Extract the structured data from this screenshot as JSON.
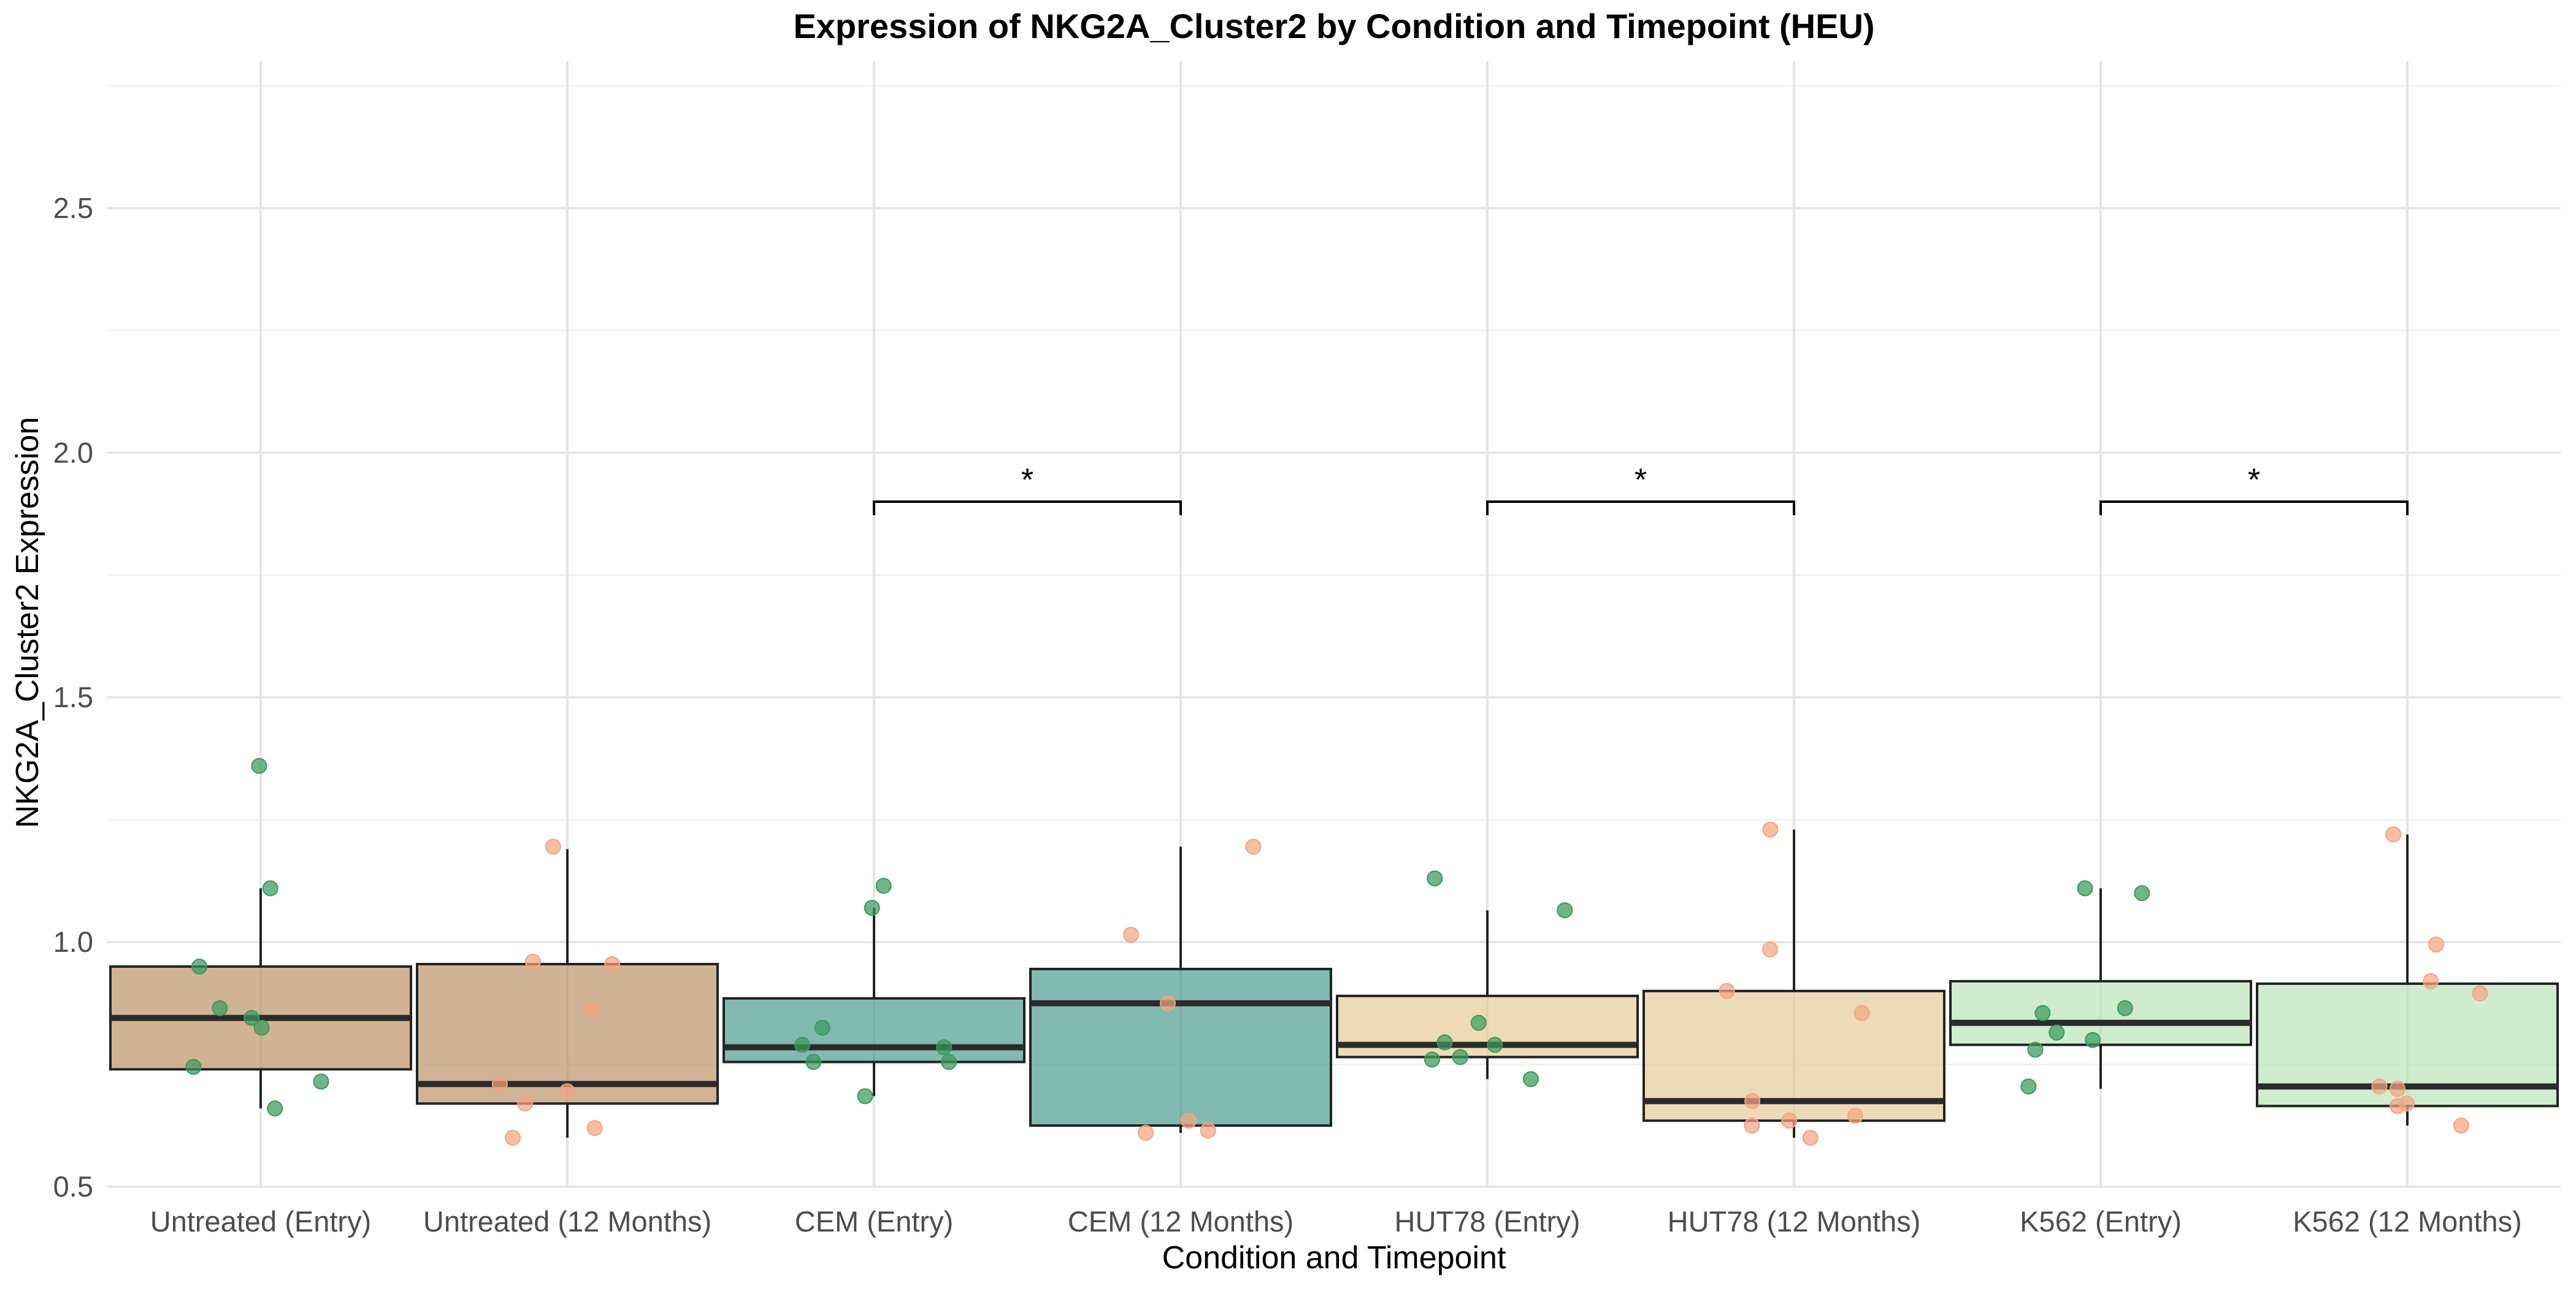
{
  "chart_data": {
    "type": "box",
    "title": "Expression of NKG2A_Cluster2 by Condition and Timepoint (HEU)",
    "xlabel": "Condition and Timepoint",
    "ylabel": "NKG2A_Cluster2 Expression",
    "ylim": [
      0.5,
      2.8
    ],
    "yticks": [
      0.5,
      1.0,
      1.5,
      2.0,
      2.5
    ],
    "ytick_labels": [
      "0.5",
      "1.0",
      "1.5",
      "2.0",
      "2.5"
    ],
    "grid": true,
    "categories": [
      "Untreated (Entry)",
      "Untreated (12 Months)",
      "CEM (Entry)",
      "CEM (12 Months)",
      "HUT78 (Entry)",
      "HUT78 (12 Months)",
      "K562 (Entry)",
      "K562 (12 Months)"
    ],
    "boxes": [
      {
        "category": "Untreated (Entry)",
        "min": 0.66,
        "q1": 0.74,
        "median": 0.845,
        "q3": 0.95,
        "max": 1.11,
        "fill": "#B58555"
      },
      {
        "category": "Untreated (12 Months)",
        "min": 0.6,
        "q1": 0.67,
        "median": 0.71,
        "q3": 0.955,
        "max": 1.19,
        "fill": "#B58555"
      },
      {
        "category": "CEM (Entry)",
        "min": 0.685,
        "q1": 0.755,
        "median": 0.785,
        "q3": 0.885,
        "max": 1.07,
        "fill": "#358F80"
      },
      {
        "category": "CEM (12 Months)",
        "min": 0.61,
        "q1": 0.625,
        "median": 0.875,
        "q3": 0.945,
        "max": 1.195,
        "fill": "#358F80"
      },
      {
        "category": "HUT78 (Entry)",
        "min": 0.72,
        "q1": 0.765,
        "median": 0.79,
        "q3": 0.89,
        "max": 1.065,
        "fill": "#E1C589"
      },
      {
        "category": "HUT78 (12 Months)",
        "min": 0.6,
        "q1": 0.635,
        "median": 0.675,
        "q3": 0.9,
        "max": 1.23,
        "fill": "#E1C589"
      },
      {
        "category": "K562 (Entry)",
        "min": 0.7,
        "q1": 0.79,
        "median": 0.835,
        "q3": 0.92,
        "max": 1.11,
        "fill": "#B2E2B0"
      },
      {
        "category": "K562 (12 Months)",
        "min": 0.625,
        "q1": 0.665,
        "median": 0.705,
        "q3": 0.915,
        "max": 1.22,
        "fill": "#B2E2B0"
      }
    ],
    "points": [
      {
        "category_index": 0,
        "values": [
          1.36,
          1.11,
          0.95,
          0.865,
          0.845,
          0.825,
          0.745,
          0.715,
          0.66
        ]
      },
      {
        "category_index": 1,
        "values": [
          1.195,
          0.96,
          0.955,
          0.86,
          0.71,
          0.695,
          0.67,
          0.62,
          0.6
        ]
      },
      {
        "category_index": 2,
        "values": [
          1.115,
          1.07,
          0.825,
          0.79,
          0.785,
          0.755,
          0.755,
          0.685
        ]
      },
      {
        "category_index": 3,
        "values": [
          1.195,
          1.015,
          0.875,
          0.635,
          0.615,
          0.61
        ]
      },
      {
        "category_index": 4,
        "values": [
          1.13,
          1.065,
          0.835,
          0.795,
          0.79,
          0.765,
          0.76,
          0.72
        ]
      },
      {
        "category_index": 5,
        "values": [
          1.23,
          0.985,
          0.9,
          0.855,
          0.675,
          0.645,
          0.635,
          0.625,
          0.6
        ]
      },
      {
        "category_index": 6,
        "values": [
          1.11,
          1.1,
          0.865,
          0.855,
          0.815,
          0.8,
          0.78,
          0.705
        ]
      },
      {
        "category_index": 7,
        "values": [
          1.22,
          0.995,
          0.92,
          0.895,
          0.705,
          0.7,
          0.67,
          0.665,
          0.625
        ]
      }
    ],
    "point_colors": {
      "Entry": "#3A9A5B",
      "12 Months": "#F4A582"
    },
    "significance": [
      {
        "from": 2,
        "to": 3,
        "y": 1.9,
        "label": "*"
      },
      {
        "from": 4,
        "to": 5,
        "y": 1.9,
        "label": "*"
      },
      {
        "from": 6,
        "to": 7,
        "y": 1.9,
        "label": "*"
      }
    ]
  }
}
